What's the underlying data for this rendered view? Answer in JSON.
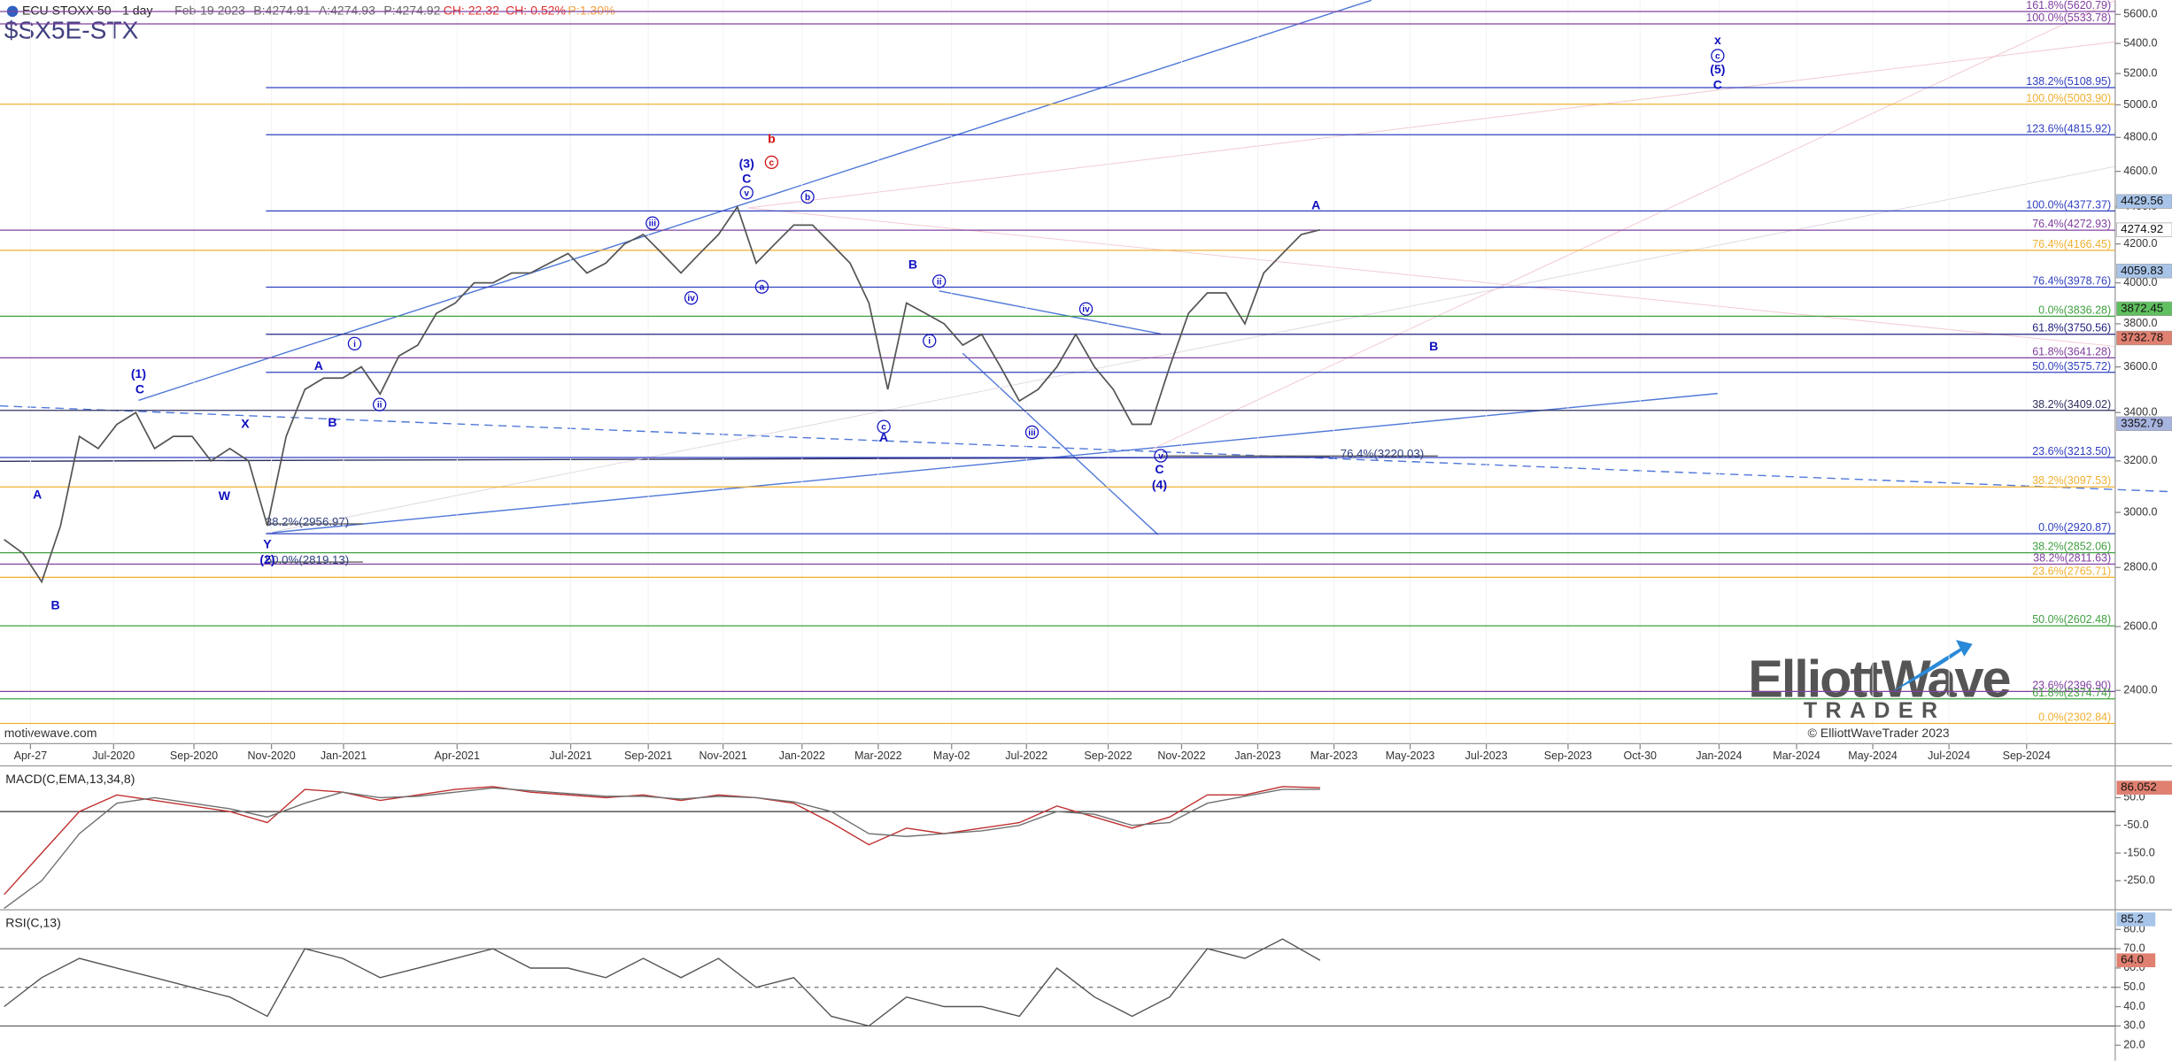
{
  "chart_data": {
    "type": "line",
    "header": {
      "title": "ECU STOXX 50 - 1 day",
      "date": "Feb-19 2023",
      "bid": "B:4274.91",
      "ask": "A:4274.93",
      "price": "P:4274.92",
      "change": "CH: 22.32",
      "change_pct": "CH: 0.52%",
      "pct": "P:1.30%"
    },
    "symbol": "$SX5E-STX",
    "watermark": "motivewave.com",
    "logo": {
      "name": "ElliottWave",
      "sub": "TRADER",
      "copyright": "© ElliottWaveTrader 2023"
    },
    "log_scale": true,
    "ylim": [
      2245,
      5700
    ],
    "yticks": [
      {
        "value": 2400,
        "label": "2400.0"
      },
      {
        "value": 2600,
        "label": "2600.0"
      },
      {
        "value": 2800,
        "label": "2800.0"
      },
      {
        "value": 3000,
        "label": "3000.0"
      },
      {
        "value": 3200,
        "label": "3200.0"
      },
      {
        "value": 3400,
        "label": "3400.0"
      },
      {
        "value": 3600,
        "label": "3600.0"
      },
      {
        "value": 3800,
        "label": "3800.0"
      },
      {
        "value": 4000,
        "label": "4000.0"
      },
      {
        "value": 4200,
        "label": "4200.0"
      },
      {
        "value": 4400,
        "label": "4400.0"
      },
      {
        "value": 4600,
        "label": "4600.0"
      },
      {
        "value": 4800,
        "label": "4800.0"
      },
      {
        "value": 5000,
        "label": "5000.0"
      },
      {
        "value": 5200,
        "label": "5200.0"
      },
      {
        "value": 5400,
        "label": "5400.0"
      },
      {
        "value": 5600,
        "label": "5600.0"
      }
    ],
    "time_axis": [
      "Apr-27",
      "Jul-2020",
      "Sep-2020",
      "Nov-2020",
      "Jan-2021",
      "Apr-2021",
      "Jul-2021",
      "Sep-2021",
      "Nov-2021",
      "Jan-2022",
      "Mar-2022",
      "May-02",
      "Jul-2022",
      "Sep-2022",
      "Nov-2022",
      "Jan-2023",
      "Mar-2023",
      "May-2023",
      "Jul-2023",
      "Sep-2023",
      "Oct-30",
      "Jan-2024",
      "Mar-2024",
      "May-2024",
      "Jul-2024",
      "Sep-2024"
    ],
    "price": {
      "color": "#555555",
      "values": [
        2900,
        2850,
        2750,
        2950,
        3300,
        3250,
        3350,
        3400,
        3250,
        3300,
        3300,
        3200,
        3250,
        3200,
        2950,
        3300,
        3500,
        3550,
        3550,
        3600,
        3480,
        3650,
        3700,
        3850,
        3900,
        4000,
        4000,
        4050,
        4050,
        4100,
        4150,
        4050,
        4100,
        4200,
        4250,
        4150,
        4050,
        4150,
        4250,
        4400,
        4100,
        4200,
        4300,
        4300,
        4200,
        4100,
        3900,
        3500,
        3900,
        3850,
        3800,
        3700,
        3750,
        3600,
        3450,
        3500,
        3600,
        3750,
        3600,
        3500,
        3350,
        3350,
        3600,
        3850,
        3950,
        3950,
        3800,
        4050,
        4150,
        4250,
        4275
      ]
    },
    "levels": [
      {
        "value": 5620.79,
        "label": "161.8%(5620.79)",
        "color": "#8040a0"
      },
      {
        "value": 5533.78,
        "label": "100.0%(5533.78)",
        "color": "#8040a0"
      },
      {
        "value": 5108.95,
        "label": "138.2%(5108.95)",
        "color": "#3040c0"
      },
      {
        "value": 5003.9,
        "label": "100.0%(5003.90)",
        "color": "#f0b030"
      },
      {
        "value": 4815.92,
        "label": "123.6%(4815.92)",
        "color": "#3040c0"
      },
      {
        "value": 4377.37,
        "label": "100.0%(4377.37)",
        "color": "#3040c0"
      },
      {
        "value": 4272.93,
        "label": "76.4%(4272.93)",
        "color": "#8040a0"
      },
      {
        "value": 4166.45,
        "label": "76.4%(4166.45)",
        "color": "#f0b030"
      },
      {
        "value": 3978.76,
        "label": "76.4%(3978.76)",
        "color": "#3040c0"
      },
      {
        "value": 3836.28,
        "label": "0.0%(3836.28)",
        "color": "#40a040"
      },
      {
        "value": 3750.56,
        "label": "61.8%(3750.56)",
        "color": "#202080"
      },
      {
        "value": 3641.28,
        "label": "61.8%(3641.28)",
        "color": "#8040a0"
      },
      {
        "value": 3575.72,
        "label": "50.0%(3575.72)",
        "color": "#3040c0"
      },
      {
        "value": 3409.02,
        "label": "38.2%(3409.02)",
        "color": "#303060"
      },
      {
        "value": 3213.5,
        "label": "23.6%(3213.50)",
        "color": "#3040c0"
      },
      {
        "value": 3097.53,
        "label": "38.2%(3097.53)",
        "color": "#f0b030"
      },
      {
        "value": 2920.87,
        "label": "0.0%(2920.87)",
        "color": "#3040c0"
      },
      {
        "value": 2852.06,
        "label": "38.2%(2852.06)",
        "color": "#40a040"
      },
      {
        "value": 2811.63,
        "label": "38.2%(2811.63)",
        "color": "#8040a0"
      },
      {
        "value": 2765.71,
        "label": "23.6%(2765.71)",
        "color": "#f0b030"
      },
      {
        "value": 2602.48,
        "label": "50.0%(2602.48)",
        "color": "#40a040"
      },
      {
        "value": 2396.9,
        "label": "23.6%(2396.90)",
        "color": "#8040a0"
      },
      {
        "value": 2374.74,
        "label": "61.8%(2374.74)",
        "color": "#40a040"
      },
      {
        "value": 2302.84,
        "label": "0.0%(2302.84)",
        "color": "#f0b030"
      }
    ],
    "left_levels": [
      {
        "value": 2956.97,
        "label": "38.2%(2956.97)"
      },
      {
        "value": 2819.13,
        "label": "50.0%(2819.13)"
      },
      {
        "value": 3220.03,
        "label": "76.4%(3220.03)"
      }
    ],
    "price_tags": [
      {
        "value": 4429.56,
        "color": "#a8c4e8"
      },
      {
        "value": 4274.92,
        "color": "#ffffff"
      },
      {
        "value": 4059.83,
        "color": "#a8c4e8"
      },
      {
        "value": 3872.45,
        "color": "#60c060"
      },
      {
        "value": 3732.78,
        "color": "#e08070"
      },
      {
        "value": 3352.79,
        "color": "#a8b4e0"
      }
    ],
    "wave_labels": [
      {
        "text": "A",
        "color": "#1010c0"
      },
      {
        "text": "B",
        "color": "#1010c0"
      },
      {
        "text": "(1)",
        "color": "#1010c0"
      },
      {
        "text": "C",
        "color": "#1010c0"
      },
      {
        "text": "X",
        "color": "#1010c0"
      },
      {
        "text": "W",
        "color": "#1010c0"
      },
      {
        "text": "Y",
        "color": "#1010c0"
      },
      {
        "text": "(2)",
        "color": "#1010c0"
      },
      {
        "text": "A",
        "color": "#1010c0"
      },
      {
        "text": "B",
        "color": "#1010c0"
      },
      {
        "text": "i",
        "color": "#1010c0",
        "circled": true
      },
      {
        "text": "ii",
        "color": "#1010c0",
        "circled": true
      },
      {
        "text": "iii",
        "color": "#1010c0",
        "circled": true
      },
      {
        "text": "iv",
        "color": "#1010c0",
        "circled": true
      },
      {
        "text": "v",
        "color": "#1010c0",
        "circled": true
      },
      {
        "text": "(3)",
        "color": "#1010c0"
      },
      {
        "text": "C",
        "color": "#1010c0"
      },
      {
        "text": "a",
        "color": "#1010c0",
        "circled": true
      },
      {
        "text": "b",
        "color": "#1010c0",
        "circled": true
      },
      {
        "text": "b",
        "color": "#d01010"
      },
      {
        "text": "c",
        "color": "#d01010",
        "circled": true
      },
      {
        "text": "B",
        "color": "#1010c0"
      },
      {
        "text": "ii",
        "color": "#1010c0",
        "circled": true
      },
      {
        "text": "i",
        "color": "#1010c0",
        "circled": true
      },
      {
        "text": "c",
        "color": "#1010c0",
        "circled": true
      },
      {
        "text": "A",
        "color": "#1010c0"
      },
      {
        "text": "iii",
        "color": "#1010c0",
        "circled": true
      },
      {
        "text": "iv",
        "color": "#1010c0",
        "circled": true
      },
      {
        "text": "v",
        "color": "#1010c0",
        "circled": true
      },
      {
        "text": "C",
        "color": "#1010c0"
      },
      {
        "text": "(4)",
        "color": "#1010c0"
      },
      {
        "text": "A",
        "color": "#1010c0"
      },
      {
        "text": "B",
        "color": "#1010c0"
      },
      {
        "text": "x",
        "color": "#1010c0"
      },
      {
        "text": "c",
        "color": "#1010c0",
        "circled": true
      },
      {
        "text": "(5)",
        "color": "#1010c0"
      },
      {
        "text": "C",
        "color": "#1010c0"
      }
    ],
    "macd": {
      "title": "MACD(C,EMA,13,34,8)",
      "ylim": [
        -345,
        155
      ],
      "yticks": [
        {
          "value": 50,
          "label": "50.0"
        },
        {
          "value": -50,
          "label": "-50.0"
        },
        {
          "value": -150,
          "label": "-150.0"
        },
        {
          "value": -250,
          "label": "-250.0"
        }
      ],
      "tag": 86.052,
      "series": [
        {
          "name": "MACD",
          "color": "#c03030",
          "values": [
            -300,
            -150,
            0,
            60,
            40,
            20,
            0,
            -40,
            80,
            70,
            40,
            60,
            80,
            90,
            70,
            60,
            50,
            60,
            40,
            60,
            50,
            30,
            -40,
            -120,
            -60,
            -80,
            -60,
            -40,
            20,
            -20,
            -60,
            -20,
            60,
            60,
            90,
            86
          ]
        },
        {
          "name": "Signal",
          "color": "#707070",
          "values": [
            -350,
            -250,
            -80,
            30,
            50,
            30,
            10,
            -20,
            30,
            70,
            50,
            55,
            70,
            85,
            75,
            65,
            55,
            55,
            45,
            55,
            50,
            35,
            0,
            -80,
            -90,
            -80,
            -70,
            -50,
            0,
            -10,
            -50,
            -40,
            30,
            55,
            80,
            80
          ]
        }
      ]
    },
    "rsi": {
      "title": "RSI(C,13)",
      "ylim": [
        12,
        88
      ],
      "yticks": [
        {
          "value": 80,
          "label": "80.0"
        },
        {
          "value": 70,
          "label": "70.0"
        },
        {
          "value": 60,
          "label": "60.0"
        },
        {
          "value": 50,
          "label": "50.0"
        },
        {
          "value": 40,
          "label": "40.0"
        },
        {
          "value": 30,
          "label": "30.0"
        },
        {
          "value": 20,
          "label": "20.0"
        }
      ],
      "levels": [
        70,
        50,
        30
      ],
      "tags": [
        {
          "value": 85.2,
          "color": "#a8c4e8"
        },
        {
          "value": 64.0,
          "label": "64.0",
          "color": "#e08070"
        }
      ],
      "color": "#555555",
      "values": [
        40,
        55,
        65,
        60,
        55,
        50,
        45,
        35,
        70,
        65,
        55,
        60,
        65,
        70,
        60,
        60,
        55,
        65,
        55,
        65,
        50,
        55,
        35,
        30,
        45,
        40,
        40,
        35,
        60,
        45,
        35,
        45,
        70,
        65,
        75,
        64
      ]
    }
  }
}
